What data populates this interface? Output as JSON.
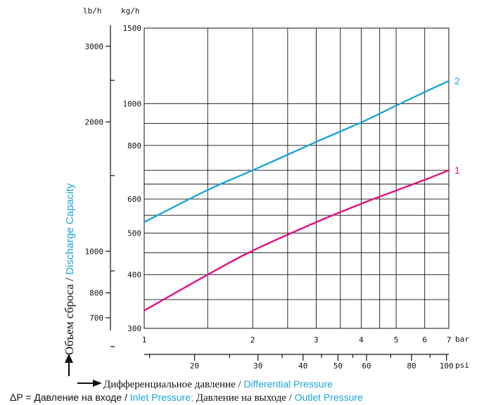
{
  "colors": {
    "series1": "#e0117f",
    "series2": "#1ba4dc",
    "accent_blue": "#1ba4dc",
    "ink": "#111111"
  },
  "chart_data": {
    "type": "line",
    "x_scale": "log",
    "y_scale": "log",
    "xlim": [
      1,
      7
    ],
    "ylim": [
      300,
      1500
    ],
    "grid": true,
    "x_bar_unit": "bar",
    "x_psi_unit": "psi",
    "y_left_unit": "lb/h",
    "y_right_unit": "kg/h",
    "kg_ticks": [
      "1500",
      "1000",
      "800",
      "600",
      "500",
      "400",
      "300"
    ],
    "lbh_ticks": [
      "3000",
      "2000",
      "1000",
      "800",
      "700"
    ],
    "bar_ticks": [
      "1",
      "2",
      "3",
      "4",
      "5",
      "6",
      "7"
    ],
    "psi_ticks": [
      "20",
      "30",
      "40",
      "50",
      "60",
      "80",
      "100"
    ],
    "series": [
      {
        "name": "1",
        "color": "#e0117f",
        "x": [
          1,
          1.5,
          2,
          3,
          4,
          5,
          6,
          7
        ],
        "y": [
          330,
          400,
          455,
          530,
          585,
          628,
          665,
          700
        ]
      },
      {
        "name": "2",
        "color": "#1ba4dc",
        "x": [
          1,
          1.5,
          2,
          3,
          4,
          5,
          6,
          7
        ],
        "y": [
          530,
          630,
          700,
          815,
          905,
          990,
          1065,
          1130
        ]
      }
    ]
  },
  "ylabel": {
    "ru": "Объем сброса",
    "sep": " / ",
    "en": "Discharge Capacity"
  },
  "xlabel": {
    "ru": "Дифференциальное давление",
    "sep": " / ",
    "en": "Differential Pressure"
  },
  "footnote": {
    "part1": "ΔP = Давление на входе / ",
    "part2": "Inlet Pressure;",
    "part3": " Давление на выходе / ",
    "part4": "Outlet Pressure"
  }
}
